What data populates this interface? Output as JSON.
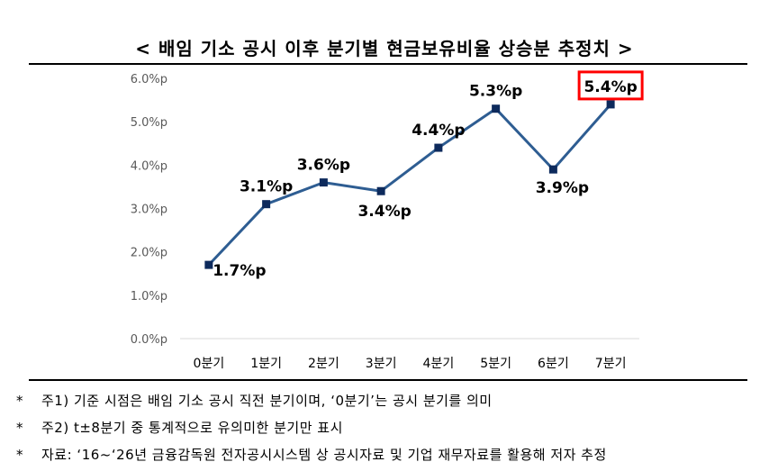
{
  "title": "< 배임 기소 공시 이후 분기별 현금보유비율 상승분 추정치 >",
  "notes": [
    {
      "mark": "*",
      "text": "주1) 기준 시점은 배임 기소 공시 직전 분기이며, ‘0분기’는 공시 분기를 의미"
    },
    {
      "mark": "*",
      "text": "주2) t±8분기 중 통계적으로 유의미한 분기만 표시"
    },
    {
      "mark": "*",
      "text": "자료: ‘16~‘26년 금융감독원 전자공시시스템 상 공시자료 및 기업 재무자료를 활용해 저자 추정"
    }
  ],
  "chart_data": {
    "type": "line",
    "title": "",
    "xlabel": "",
    "ylabel": "",
    "categories": [
      "0분기",
      "1분기",
      "2분기",
      "3분기",
      "4분기",
      "5분기",
      "6분기",
      "7분기"
    ],
    "values": [
      1.7,
      3.1,
      3.6,
      3.4,
      4.4,
      5.3,
      3.9,
      5.4
    ],
    "data_labels": [
      "1.7%p",
      "3.1%p",
      "3.6%p",
      "3.4%p",
      "4.4%p",
      "5.3%p",
      "3.9%p",
      "5.4%p"
    ],
    "yticks": [
      "0.0%p",
      "1.0%p",
      "2.0%p",
      "3.0%p",
      "4.0%p",
      "5.0%p",
      "6.0%p"
    ],
    "ylim": [
      0,
      6
    ],
    "grid": false,
    "line_color": "#2e5d92",
    "marker_color": "#0d2a5c",
    "highlight_index": 7,
    "highlight_color": "#ff0000"
  }
}
